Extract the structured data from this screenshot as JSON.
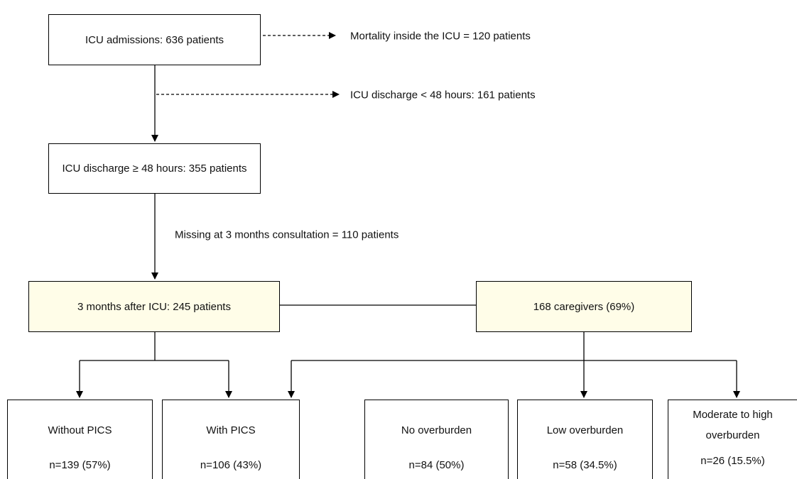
{
  "nodes": [
    {
      "label": "ICU admissions: 636 patients"
    },
    {
      "label": "ICU discharge ≥ 48 hours: 355 patients"
    },
    {
      "label": "3 months after ICU: 245 patients"
    },
    {
      "label": "168 caregivers (69%)"
    },
    {
      "label": "Without PICS",
      "count": "n=139 (57%)"
    },
    {
      "label": "With PICS",
      "count": "n=106 (43%)"
    },
    {
      "label": "No overburden",
      "count": "n=84 (50%)"
    },
    {
      "label": "Low overburden",
      "count": "n=58 (34.5%)"
    },
    {
      "label": "Moderate to high overburden",
      "count": "n=26 (15.5%)"
    }
  ],
  "exclusions": [
    {
      "label": "Mortality inside the ICU = 120 patients"
    },
    {
      "label": "ICU discharge < 48 hours: 161 patients"
    },
    {
      "label": "Missing at 3 months consultation = 110 patients"
    }
  ]
}
